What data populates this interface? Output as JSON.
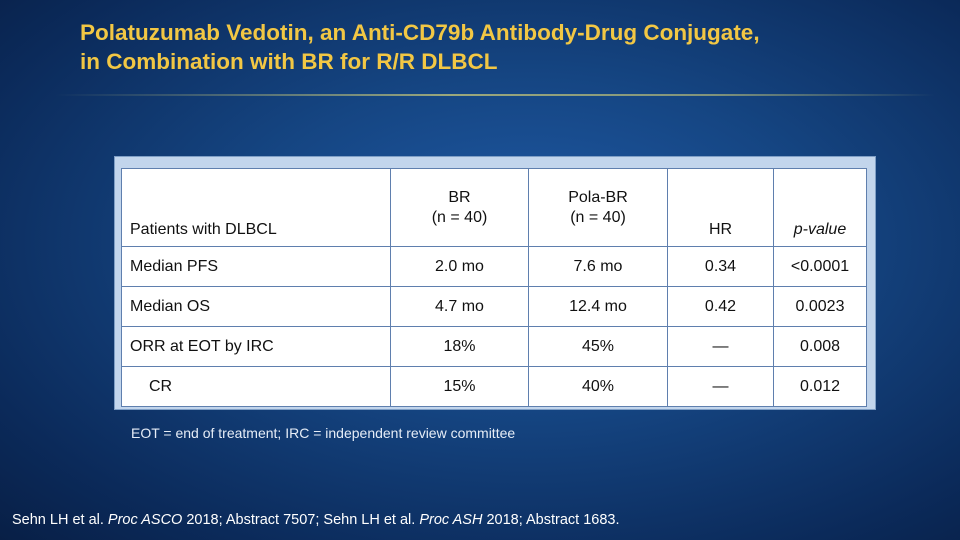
{
  "slide": {
    "title_line1": "Polatuzumab Vedotin, an Anti-CD79b Antibody-Drug Conjugate,",
    "title_line2": "in Combination with BR for R/R DLBCL"
  },
  "table": {
    "header": {
      "label": "Patients with DLBCL",
      "col_br_line1": "BR",
      "col_br_line2": "(n = 40)",
      "col_polabr_line1": "Pola-BR",
      "col_polabr_line2": "(n = 40)",
      "col_hr": "HR",
      "col_p": "p-value"
    },
    "rows": [
      {
        "label": "Median PFS",
        "br": "2.0 mo",
        "pola_br": "7.6 mo",
        "hr": "0.34",
        "p": "<0.0001"
      },
      {
        "label": "Median OS",
        "br": "4.7 mo",
        "pola_br": "12.4 mo",
        "hr": "0.42",
        "p": "0.0023"
      },
      {
        "label": "ORR at EOT by IRC",
        "br": "18%",
        "pola_br": "45%",
        "hr": "—",
        "p": "0.008"
      },
      {
        "label": "CR",
        "br": "15%",
        "pola_br": "40%",
        "hr": "—",
        "p": "0.012"
      }
    ]
  },
  "footnote": "EOT = end of treatment; IRC = independent review committee",
  "citation": {
    "part1": "Sehn LH et al. ",
    "journal1": "Proc ASCO",
    "part2": " 2018; Abstract 7507; Sehn LH et al. ",
    "journal2": "Proc ASH",
    "part3": " 2018; Abstract 1683."
  },
  "colors": {
    "title": "#f2c744",
    "background": "#154582",
    "table_frame": "#c2d5ec"
  }
}
